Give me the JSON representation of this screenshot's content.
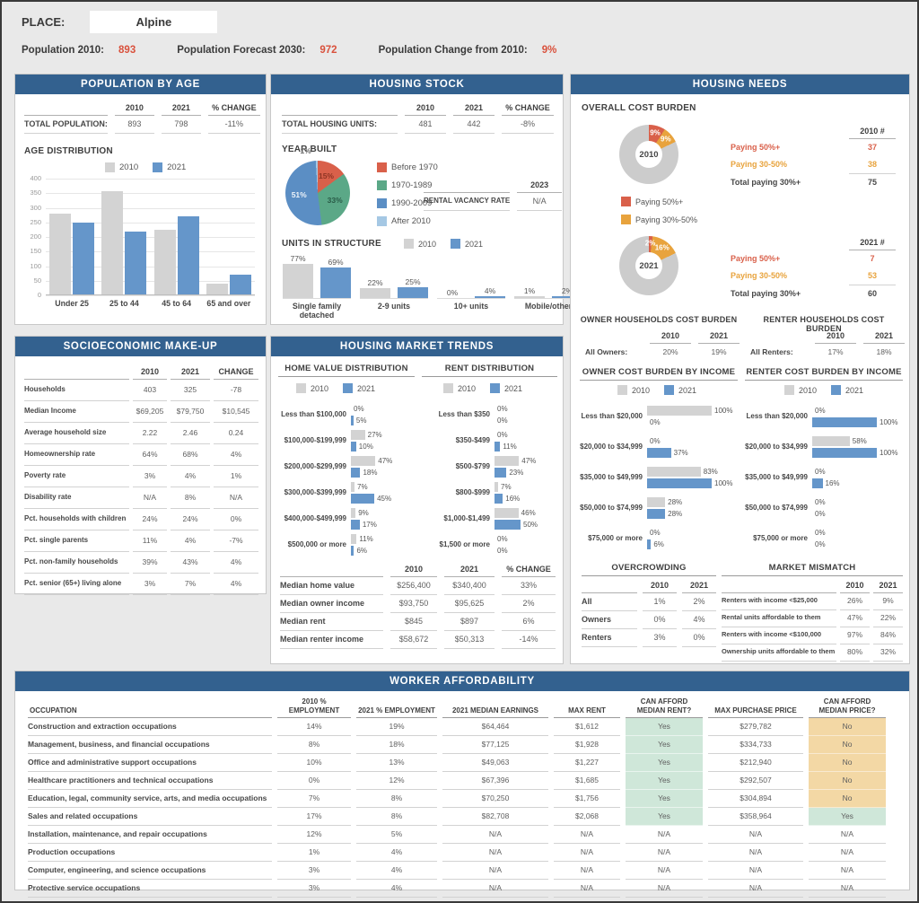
{
  "colors": {
    "header_bg": "#33618f",
    "accent_red": "#d9513c",
    "bar_gray": "#d3d3d3",
    "bar_blue": "#6596ca",
    "burden_red": "#d9604a",
    "burden_orange": "#e8a33d",
    "donut_gray": "#cccccc",
    "yes_bg": "#cfe7d9",
    "no_bg": "#f3d8a5"
  },
  "top": {
    "place_label": "PLACE:",
    "place_value": "Alpine",
    "stats": [
      {
        "label": "Population 2010:",
        "value": "893"
      },
      {
        "label": "Population Forecast 2030:",
        "value": "972"
      },
      {
        "label": "Population Change from 2010:",
        "value": "9%"
      }
    ]
  },
  "population_by_age": {
    "title": "POPULATION BY AGE",
    "summary": {
      "header": [
        "",
        "2010",
        "2021",
        "% CHANGE"
      ],
      "rows": [
        [
          "TOTAL POPULATION:",
          "893",
          "798",
          "-11%"
        ]
      ]
    },
    "chart_label": "AGE DISTRIBUTION",
    "legend": [
      "2010",
      "2021"
    ]
  },
  "socioeconomic": {
    "title": "SOCIOECONOMIC MAKE-UP",
    "header": [
      "",
      "2010",
      "2021",
      "CHANGE"
    ],
    "rows": [
      [
        "Households",
        "403",
        "325",
        "-78"
      ],
      [
        "Median Income",
        "$69,205",
        "$79,750",
        "$10,545"
      ],
      [
        "Average household size",
        "2.22",
        "2.46",
        "0.24"
      ],
      [
        "Homeownership rate",
        "64%",
        "68%",
        "4%"
      ],
      [
        "Poverty rate",
        "3%",
        "4%",
        "1%"
      ],
      [
        "Disability rate",
        "N/A",
        "8%",
        "N/A"
      ],
      [
        "Pct. households with children",
        "24%",
        "24%",
        "0%"
      ],
      [
        "Pct. single parents",
        "11%",
        "4%",
        "-7%"
      ],
      [
        "Pct. non-family households",
        "39%",
        "43%",
        "4%"
      ],
      [
        "Pct. senior (65+) living alone",
        "3%",
        "7%",
        "4%"
      ]
    ]
  },
  "housing_stock": {
    "title": "HOUSING STOCK",
    "summary": {
      "header": [
        "",
        "2010",
        "2021",
        "% CHANGE"
      ],
      "rows": [
        [
          "TOTAL HOUSING UNITS:",
          "481",
          "442",
          "-8%"
        ]
      ]
    },
    "year_built_label": "YEAR BUILT",
    "vacancy": {
      "header": [
        "",
        "2023"
      ],
      "rows": [
        [
          "RENTAL VACANCY RATE",
          "N/A"
        ]
      ]
    },
    "units_label": "UNITS IN STRUCTURE",
    "legend": [
      "2010",
      "2021"
    ]
  },
  "market_trends": {
    "title": "HOUSING MARKET TRENDS",
    "home_value_title": "HOME VALUE DISTRIBUTION",
    "rent_title": "RENT DISTRIBUTION",
    "legend": [
      "2010",
      "2021"
    ],
    "medians": {
      "header": [
        "",
        "2010",
        "2021",
        "% CHANGE"
      ],
      "rows": [
        [
          "Median home value",
          "$256,400",
          "$340,400",
          "33%"
        ],
        [
          "Median owner income",
          "$93,750",
          "$95,625",
          "2%"
        ],
        [
          "Median rent",
          "$845",
          "$897",
          "6%"
        ],
        [
          "Median renter income",
          "$58,672",
          "$50,313",
          "-14%"
        ]
      ]
    }
  },
  "housing_needs": {
    "title": "HOUSING NEEDS",
    "overall_label": "OVERALL COST BURDEN",
    "donut2010": {
      "col": "2010 #",
      "rows": [
        [
          "Paying 50%+",
          "37"
        ],
        [
          "Paying 30-50%",
          "38"
        ],
        [
          "Total paying 30%+",
          "75"
        ]
      ]
    },
    "donut2021": {
      "col": "2021 #",
      "rows": [
        [
          "Paying 50%+",
          "7"
        ],
        [
          "Paying 30-50%",
          "53"
        ],
        [
          "Total paying 30%+",
          "60"
        ]
      ]
    },
    "burden_legend": [
      "Paying 50%+",
      "Paying 30%-50%"
    ],
    "owner_hh": {
      "title": "OWNER HOUSEHOLDS COST BURDEN",
      "header": [
        "",
        "2010",
        "2021"
      ],
      "rows": [
        [
          "All Owners:",
          "20%",
          "19%"
        ]
      ]
    },
    "renter_hh": {
      "title": "RENTER HOUSEHOLDS COST BURDEN",
      "header": [
        "",
        "2010",
        "2021"
      ],
      "rows": [
        [
          "All Renters:",
          "17%",
          "18%"
        ]
      ]
    },
    "owner_income_title": "OWNER COST BURDEN BY INCOME",
    "renter_income_title": "RENTER COST BURDEN BY INCOME",
    "legend": [
      "2010",
      "2021"
    ],
    "overcrowding": {
      "title": "OVERCROWDING",
      "header": [
        "",
        "2010",
        "2021"
      ],
      "rows": [
        [
          "All",
          "1%",
          "2%"
        ],
        [
          "Owners",
          "0%",
          "4%"
        ],
        [
          "Renters",
          "3%",
          "0%"
        ]
      ]
    },
    "mismatch": {
      "title": "MARKET MISMATCH",
      "header": [
        "",
        "2010",
        "2021"
      ],
      "rows": [
        [
          "Renters with income <$25,000",
          "26%",
          "9%"
        ],
        [
          "Rental units affordable to them",
          "47%",
          "22%"
        ],
        [
          "Renters with income <$100,000",
          "97%",
          "84%"
        ],
        [
          "Ownership units affordable to them",
          "80%",
          "32%"
        ]
      ]
    }
  },
  "worker": {
    "title": "WORKER AFFORDABILITY",
    "cols": [
      "OCCUPATION",
      "2010 % EMPLOYMENT",
      "2021 % EMPLOYMENT",
      "2021 MEDIAN EARNINGS",
      "MAX RENT",
      "CAN AFFORD MEDIAN RENT?",
      "MAX PURCHASE PRICE",
      "CAN AFFORD MEDIAN PRICE?"
    ],
    "rows": [
      [
        "Construction and extraction occupations",
        "14%",
        "19%",
        "$64,464",
        "$1,612",
        "Yes",
        "$279,782",
        "No"
      ],
      [
        "Management, business, and financial occupations",
        "8%",
        "18%",
        "$77,125",
        "$1,928",
        "Yes",
        "$334,733",
        "No"
      ],
      [
        "Office and administrative support occupations",
        "10%",
        "13%",
        "$49,063",
        "$1,227",
        "Yes",
        "$212,940",
        "No"
      ],
      [
        "Healthcare practitioners and technical occupations",
        "0%",
        "12%",
        "$67,396",
        "$1,685",
        "Yes",
        "$292,507",
        "No"
      ],
      [
        "Education, legal, community service, arts, and media occupations",
        "7%",
        "8%",
        "$70,250",
        "$1,756",
        "Yes",
        "$304,894",
        "No"
      ],
      [
        "Sales and related occupations",
        "17%",
        "8%",
        "$82,708",
        "$2,068",
        "Yes",
        "$358,964",
        "Yes"
      ],
      [
        "Installation, maintenance, and repair occupations",
        "12%",
        "5%",
        "N/A",
        "N/A",
        "N/A",
        "N/A",
        "N/A"
      ],
      [
        "Production occupations",
        "1%",
        "4%",
        "N/A",
        "N/A",
        "N/A",
        "N/A",
        "N/A"
      ],
      [
        "Computer, engineering, and science occupations",
        "3%",
        "4%",
        "N/A",
        "N/A",
        "N/A",
        "N/A",
        "N/A"
      ],
      [
        "Protective service occupations",
        "3%",
        "4%",
        "N/A",
        "N/A",
        "N/A",
        "N/A",
        "N/A"
      ]
    ]
  },
  "chart_data": [
    {
      "id": "age_distribution",
      "type": "bar",
      "title": "AGE DISTRIBUTION",
      "categories": [
        "Under 25",
        "25 to 44",
        "45 to 64",
        "65 and over"
      ],
      "series": [
        {
          "name": "2010",
          "values": [
            277,
            355,
            221,
            38
          ]
        },
        {
          "name": "2021",
          "values": [
            247,
            215,
            267,
            67
          ]
        }
      ],
      "ylim": [
        0,
        400
      ],
      "ytick": 50,
      "legend_position": "top"
    },
    {
      "id": "year_built",
      "type": "pie",
      "title": "YEAR BUILT",
      "labels": [
        "Before 1970",
        "1970-1989",
        "1990-2009",
        "After 2010"
      ],
      "values": [
        15,
        33,
        51,
        1
      ],
      "colors": [
        "#d9604a",
        "#5ba887",
        "#5b8ec4",
        "#a5c8e4"
      ],
      "label_colors": [
        "#8e3423",
        "#2a5c48",
        "#eef4fa",
        "#666666"
      ]
    },
    {
      "id": "units_in_structure",
      "type": "bar",
      "title": "UNITS IN STRUCTURE",
      "unit": "%",
      "categories": [
        "Single family detached",
        "2-9 units",
        "10+ units",
        "Mobile/other"
      ],
      "series": [
        {
          "name": "2010",
          "values": [
            77,
            22,
            0,
            1
          ]
        },
        {
          "name": "2021",
          "values": [
            69,
            25,
            4,
            2
          ]
        }
      ]
    },
    {
      "id": "home_value_distribution",
      "type": "bar",
      "orientation": "horizontal",
      "title": "HOME VALUE DISTRIBUTION",
      "unit": "%",
      "categories": [
        "Less than $100,000",
        "$100,000-$199,999",
        "$200,000-$299,999",
        "$300,000-$399,999",
        "$400,000-$499,999",
        "$500,000 or more"
      ],
      "series": [
        {
          "name": "2010",
          "values": [
            0,
            27,
            47,
            7,
            9,
            11
          ]
        },
        {
          "name": "2021",
          "values": [
            5,
            10,
            18,
            45,
            17,
            6
          ]
        }
      ]
    },
    {
      "id": "rent_distribution",
      "type": "bar",
      "orientation": "horizontal",
      "title": "RENT DISTRIBUTION",
      "unit": "%",
      "categories": [
        "Less than $350",
        "$350-$499",
        "$500-$799",
        "$800-$999",
        "$1,000-$1,499",
        "$1,500 or more"
      ],
      "series": [
        {
          "name": "2010",
          "values": [
            0,
            0,
            47,
            7,
            46,
            0
          ]
        },
        {
          "name": "2021",
          "values": [
            0,
            11,
            23,
            16,
            50,
            0
          ]
        }
      ]
    },
    {
      "id": "cost_burden_2010",
      "type": "pie",
      "donut": true,
      "center_label": "2010",
      "labels": [
        "Paying 50%+",
        "Paying 30-50%",
        "Not cost burdened"
      ],
      "values": [
        9,
        9,
        82
      ],
      "colors": [
        "#d9604a",
        "#e8a33d",
        "#cccccc"
      ]
    },
    {
      "id": "cost_burden_2021",
      "type": "pie",
      "donut": true,
      "center_label": "2021",
      "labels": [
        "Paying 50%+",
        "Paying 30-50%",
        "Not cost burdened"
      ],
      "values": [
        2,
        16,
        82
      ],
      "colors": [
        "#d9604a",
        "#e8a33d",
        "#cccccc"
      ]
    },
    {
      "id": "owner_cost_burden_by_income",
      "type": "bar",
      "orientation": "horizontal",
      "title": "OWNER COST BURDEN BY INCOME",
      "unit": "%",
      "categories": [
        "Less than $20,000",
        "$20,000 to $34,999",
        "$35,000 to $49,999",
        "$50,000 to $74,999",
        "$75,000 or more"
      ],
      "series": [
        {
          "name": "2010",
          "values": [
            100,
            0,
            83,
            28,
            0
          ]
        },
        {
          "name": "2021",
          "values": [
            0,
            37,
            100,
            28,
            6
          ]
        }
      ]
    },
    {
      "id": "renter_cost_burden_by_income",
      "type": "bar",
      "orientation": "horizontal",
      "title": "RENTER COST BURDEN BY INCOME",
      "unit": "%",
      "categories": [
        "Less than $20,000",
        "$20,000 to $34,999",
        "$35,000 to $49,999",
        "$50,000 to $74,999",
        "$75,000 or more"
      ],
      "series": [
        {
          "name": "2010",
          "values": [
            0,
            58,
            0,
            0,
            0
          ]
        },
        {
          "name": "2021",
          "values": [
            100,
            100,
            16,
            0,
            0
          ]
        }
      ]
    }
  ]
}
